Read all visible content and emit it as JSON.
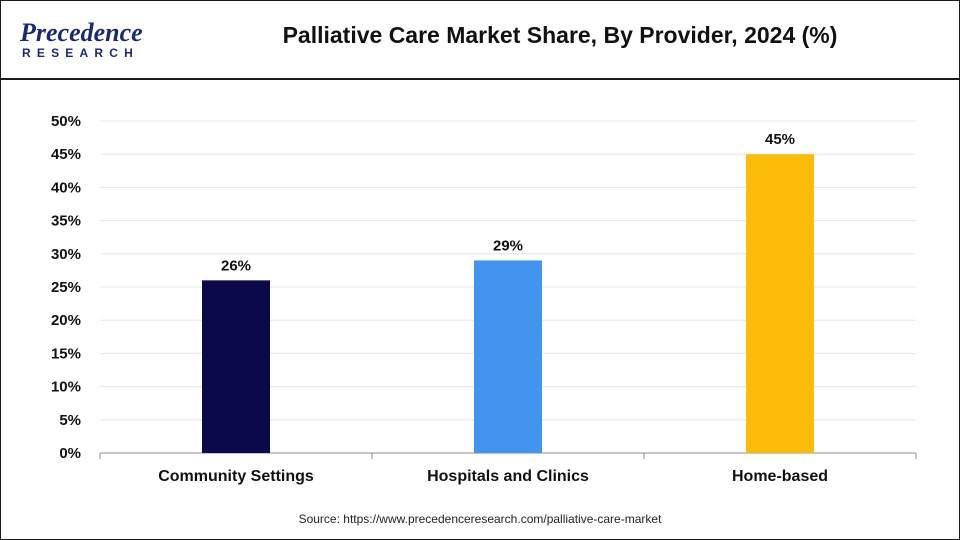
{
  "header": {
    "logo_main": "Precedence",
    "logo_sub": "RESEARCH",
    "title": "Palliative Care Market Share, By Provider, 2024 (%)"
  },
  "footer": {
    "source": "Source: https://www.precedenceresearch.com/palliative-care-market"
  },
  "colors": {
    "brand": "#1b2a6b",
    "bars": [
      "#0a0a4a",
      "#4394ef",
      "#fbbd0a"
    ]
  },
  "chart_data": {
    "type": "bar",
    "title": "Palliative Care Market Share, By Provider, 2024 (%)",
    "xlabel": "",
    "ylabel": "",
    "categories": [
      "Community Settings",
      "Hospitals and Clinics",
      "Home-based"
    ],
    "values": [
      26,
      29,
      45
    ],
    "data_labels": [
      "26%",
      "29%",
      "45%"
    ],
    "ylim": [
      0,
      50
    ],
    "yticks": [
      0,
      5,
      10,
      15,
      20,
      25,
      30,
      35,
      40,
      45,
      50
    ],
    "ytick_labels": [
      "0%",
      "5%",
      "10%",
      "15%",
      "20%",
      "25%",
      "30%",
      "35%",
      "40%",
      "45%",
      "50%"
    ],
    "grid": true,
    "legend": "none"
  }
}
